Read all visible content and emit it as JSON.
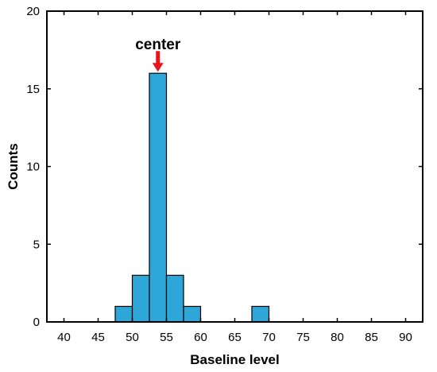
{
  "chart_data": {
    "type": "bar",
    "xlabel": "Baseline level",
    "ylabel": "Counts",
    "xlim": [
      37.5,
      92.5
    ],
    "ylim": [
      0,
      20
    ],
    "xticks": [
      40,
      45,
      50,
      55,
      60,
      65,
      70,
      75,
      80,
      85,
      90
    ],
    "yticks": [
      0,
      5,
      10,
      15,
      20
    ],
    "bin_width": 2.5,
    "bar_color": "#2ea7d8",
    "bins": [
      {
        "x": 48.75,
        "count": 1
      },
      {
        "x": 51.25,
        "count": 3
      },
      {
        "x": 53.75,
        "count": 16
      },
      {
        "x": 56.25,
        "count": 3
      },
      {
        "x": 58.75,
        "count": 1
      },
      {
        "x": 68.75,
        "count": 1
      }
    ],
    "annotation": {
      "text": "center",
      "x": 53.75,
      "arrow_color": "#e8141b"
    },
    "grid": false
  }
}
